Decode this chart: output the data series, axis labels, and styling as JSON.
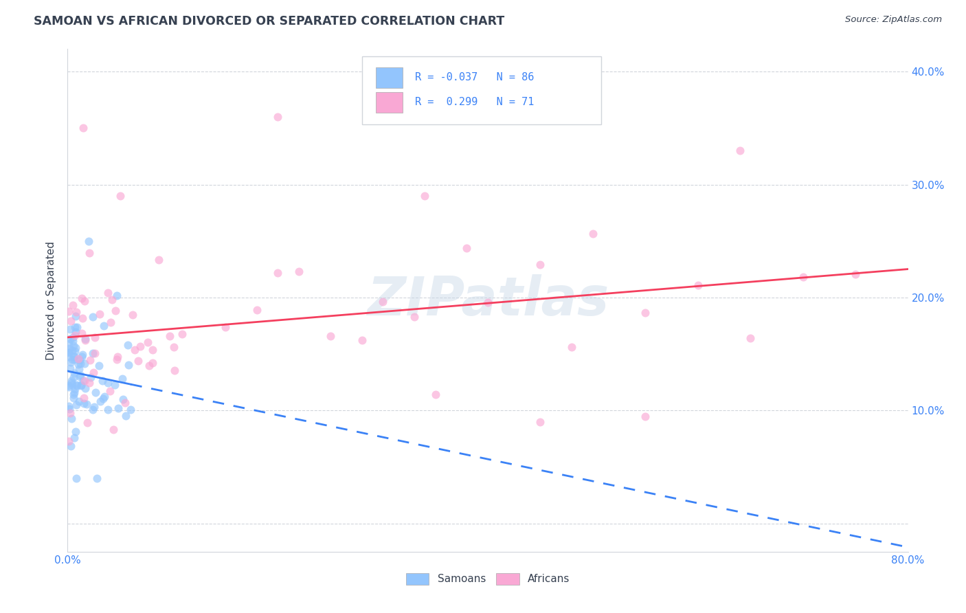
{
  "title": "SAMOAN VS AFRICAN DIVORCED OR SEPARATED CORRELATION CHART",
  "source": "Source: ZipAtlas.com",
  "ylabel": "Divorced or Separated",
  "xlim": [
    0.0,
    0.8
  ],
  "ylim": [
    -0.025,
    0.42
  ],
  "x_ticks": [
    0.0,
    0.1,
    0.2,
    0.3,
    0.4,
    0.5,
    0.6,
    0.7,
    0.8
  ],
  "x_tick_labels": [
    "0.0%",
    "",
    "",
    "",
    "",
    "",
    "",
    "",
    "80.0%"
  ],
  "y_ticks": [
    0.0,
    0.1,
    0.2,
    0.3,
    0.4
  ],
  "y_tick_labels_right": [
    "",
    "10.0%",
    "20.0%",
    "30.0%",
    "40.0%"
  ],
  "samoans_color": "#93c5fd",
  "africans_color": "#f9a8d4",
  "samoans_line_color": "#3b82f6",
  "africans_line_color": "#f43f5e",
  "legend_R_samoans": "-0.037",
  "legend_N_samoans": "86",
  "legend_R_africans": "0.299",
  "legend_N_africans": "71",
  "watermark": "ZIPatlas",
  "background_color": "#ffffff",
  "grid_color": "#d1d5db",
  "tick_color": "#3b82f6",
  "title_color": "#374151",
  "ylabel_color": "#374151"
}
